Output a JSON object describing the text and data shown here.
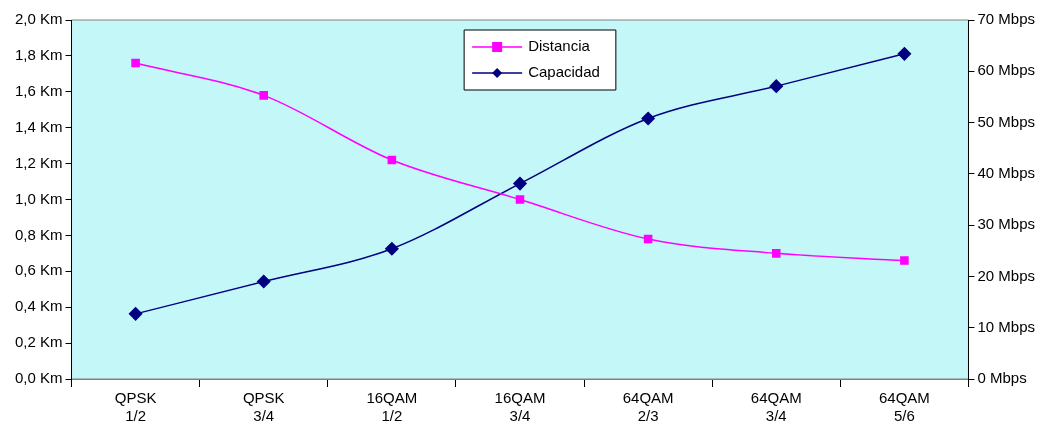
{
  "chart_data": {
    "type": "line",
    "categories": [
      "QPSK 1/2",
      "QPSK 3/4",
      "16QAM 1/2",
      "16QAM 3/4",
      "64QAM 2/3",
      "64QAM 3/4",
      "64QAM 5/6"
    ],
    "series": [
      {
        "name": "Distancia",
        "color": "#ff00ff",
        "marker": "square",
        "values": [
          1.76,
          1.58,
          1.22,
          1.0,
          0.78,
          0.7,
          0.66
        ]
      },
      {
        "name": "Capacidad",
        "color": "#000080",
        "marker": "diamond",
        "axis": "y2",
        "values": [
          12.7,
          19,
          25.4,
          38.1,
          50.8,
          57.1,
          63.4
        ]
      }
    ],
    "ylim": [
      0,
      2
    ],
    "yticks": [
      {
        "value": 0,
        "label": "0,0 Km"
      },
      {
        "value": 0.2,
        "label": "0,2 Km"
      },
      {
        "value": 0.4,
        "label": "0,4 Km"
      },
      {
        "value": 0.6,
        "label": "0,6 Km"
      },
      {
        "value": 0.8,
        "label": "0,8 Km"
      },
      {
        "value": 1,
        "label": "1,0 Km"
      },
      {
        "value": 1.2,
        "label": "1,2 Km"
      },
      {
        "value": 1.4,
        "label": "1,4 Km"
      },
      {
        "value": 1.6,
        "label": "1,6 Km"
      },
      {
        "value": 1.8,
        "label": "1,8 Km"
      },
      {
        "value": 2,
        "label": "2,0 Km"
      }
    ],
    "y2lim": [
      0,
      70
    ],
    "y2ticks": [
      {
        "value": 0,
        "label": "0 Mbps"
      },
      {
        "value": 10,
        "label": "10 Mbps"
      },
      {
        "value": 20,
        "label": "20 Mbps"
      },
      {
        "value": 30,
        "label": "30 Mbps"
      },
      {
        "value": 40,
        "label": "40 Mbps"
      },
      {
        "value": 50,
        "label": "50 Mbps"
      },
      {
        "value": 60,
        "label": "60 Mbps"
      },
      {
        "value": 70,
        "label": "70 Mbps"
      }
    ],
    "grid": false,
    "legend": "top",
    "line_style": "solid"
  }
}
